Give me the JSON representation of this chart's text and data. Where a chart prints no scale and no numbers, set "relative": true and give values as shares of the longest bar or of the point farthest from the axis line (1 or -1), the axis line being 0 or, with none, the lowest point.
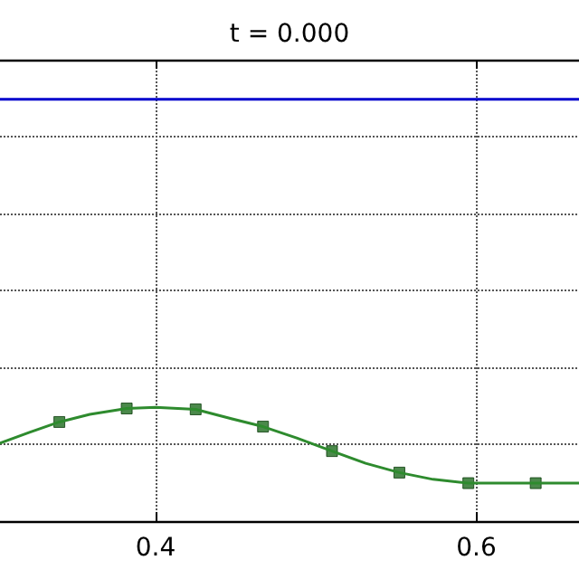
{
  "chart_data": {
    "type": "line",
    "title": "t = 0.000",
    "relative": true,
    "xlim": [
      0.303,
      0.664
    ],
    "xticks": [
      0.4,
      0.6
    ],
    "grid": true,
    "line_style": "solid",
    "series": [
      {
        "color": "#0000cc",
        "marker": "none",
        "x": [
          0.303,
          0.664
        ],
        "values": [
          1,
          1
        ]
      },
      {
        "color": "#2e8b2e",
        "marker": "none",
        "x": [
          0.303,
          0.321,
          0.34,
          0.359,
          0.382,
          0.4,
          0.425,
          0.445,
          0.467,
          0.488,
          0.51,
          0.531,
          0.552,
          0.573,
          0.595,
          0.637,
          0.664
        ],
        "values": [
          0.185,
          0.21,
          0.235,
          0.253,
          0.267,
          0.27,
          0.265,
          0.245,
          0.224,
          0.197,
          0.166,
          0.137,
          0.115,
          0.099,
          0.09,
          0.09,
          0.09
        ]
      },
      {
        "type": "scatter",
        "color": "#1e6b1e",
        "marker": "square",
        "x": [
          0.34,
          0.382,
          0.425,
          0.467,
          0.51,
          0.552,
          0.595,
          0.637
        ],
        "values": [
          0.235,
          0.267,
          0.265,
          0.224,
          0.166,
          0.115,
          0.09,
          0.09
        ]
      }
    ]
  }
}
